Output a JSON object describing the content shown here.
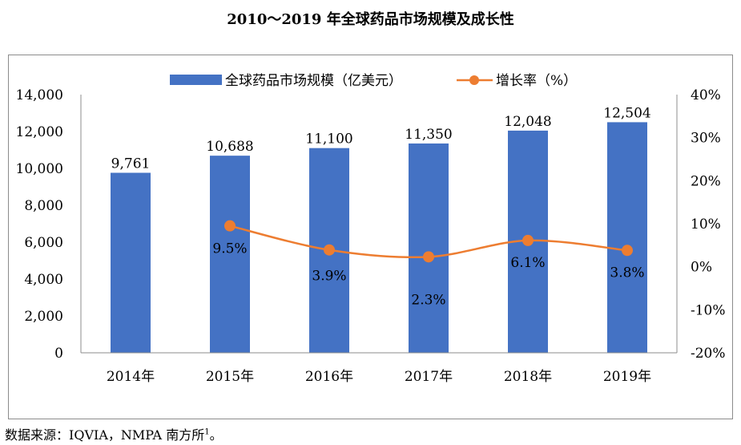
{
  "title": "2010～2019 年全球药品市场规模及成长性",
  "source": {
    "text": "数据来源：IQVIA，NMPA 南方所",
    "footnote_mark": "1",
    "end": "。"
  },
  "chart_data": {
    "type": "bar",
    "categories": [
      "2014年",
      "2015年",
      "2016年",
      "2017年",
      "2018年",
      "2019年"
    ],
    "series": [
      {
        "name": "全球药品市场规模（亿美元）",
        "type": "bar",
        "axis": "left",
        "color": "#4472C4",
        "values": [
          9761,
          10688,
          11100,
          11350,
          12048,
          12504
        ],
        "labels": [
          "9,761",
          "10,688",
          "11,100",
          "11,350",
          "12,048",
          "12,504"
        ]
      },
      {
        "name": "增长率（%）",
        "type": "line",
        "axis": "right",
        "color": "#ED7D31",
        "smooth": true,
        "points": [
          {
            "category": "2015年",
            "value": 9.5,
            "label": "9.5%"
          },
          {
            "category": "2016年",
            "value": 3.9,
            "label": "3.9%"
          },
          {
            "category": "2017年",
            "value": 2.3,
            "label": "2.3%"
          },
          {
            "category": "2018年",
            "value": 6.1,
            "label": "6.1%"
          },
          {
            "category": "2019年",
            "value": 3.8,
            "label": "3.8%"
          }
        ]
      }
    ],
    "y_left": {
      "min": 0,
      "max": 14000,
      "step": 2000,
      "ticks": [
        "0",
        "2,000",
        "4,000",
        "6,000",
        "8,000",
        "10,000",
        "12,000",
        "14,000"
      ]
    },
    "y_right": {
      "min": -20,
      "max": 40,
      "step": 10,
      "ticks": [
        "-20%",
        "-10%",
        "0%",
        "10%",
        "20%",
        "30%",
        "40%"
      ]
    },
    "grid": false,
    "legend_position": "top"
  }
}
